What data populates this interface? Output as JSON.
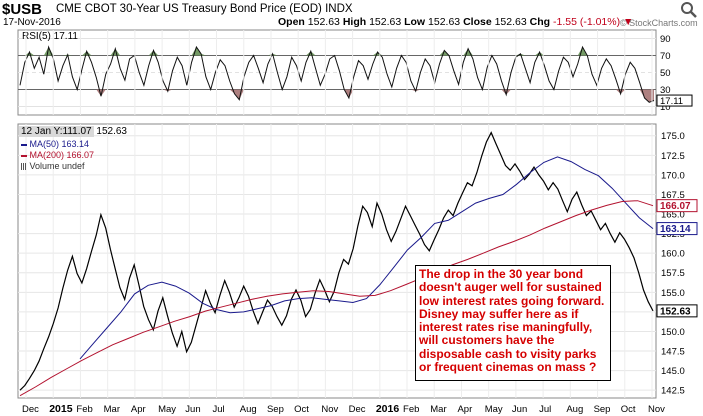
{
  "header": {
    "symbol": "$USB",
    "name": "CME CBOT 30-Year US Treasury Bond Price (EOD)",
    "exchange": "INDX",
    "date": "17-Nov-2016",
    "open_label": "Open",
    "open": "152.63",
    "high_label": "High",
    "high": "152.63",
    "low_label": "Low",
    "low": "152.63",
    "close_label": "Close",
    "close": "152.63",
    "chg_label": "Chg",
    "chg": "-1.55 (-1.01%)",
    "brand": "© StockCharts.com"
  },
  "rsi_panel": {
    "label": "RSI(5) 17.11",
    "last_value": "17.11"
  },
  "price_panel": {
    "tooltip_label": "12 Jan Y:111.07",
    "tooltip_value": "152.63",
    "legend": [
      {
        "text": "MA(50) 163.14",
        "color": "#1a1a8c"
      },
      {
        "text": "MA(200) 166.07",
        "color": "#b3122f"
      },
      {
        "text": "Volume undef",
        "color": "#333333"
      }
    ],
    "value_tags": [
      {
        "text": "166.07",
        "value": 166.07,
        "color": "#b3122f"
      },
      {
        "text": "163.14",
        "value": 163.14,
        "color": "#1a1a8c"
      },
      {
        "text": "152.63",
        "value": 152.63,
        "color": "#000000"
      }
    ]
  },
  "annotation": {
    "lines": [
      "The drop in the 30 year bond",
      "doesn't auger well for sustained",
      "low interest rates going forward.",
      "Disney may suffer here as if",
      "interest rates rise maningfully,",
      "will customers have the",
      "disposable cash to visity parks",
      "or frequent cinemas on mass ?"
    ]
  },
  "chart_data": {
    "type": "line",
    "x_ticks": [
      "Dec",
      "2015",
      "Feb",
      "Mar",
      "Apr",
      "May",
      "Jun",
      "Jul",
      "Aug",
      "Sep",
      "Oct",
      "Nov",
      "Dec",
      "2016",
      "Feb",
      "Mar",
      "Apr",
      "May",
      "Jun",
      "Jul",
      "Aug",
      "Sep",
      "Oct",
      "Nov"
    ],
    "x_range": [
      "2014-12-01",
      "2016-11-17"
    ],
    "rsi": {
      "ylim": [
        0,
        100
      ],
      "ticks": [
        10,
        30,
        50,
        70,
        90
      ],
      "overbought": 70,
      "oversold": 30,
      "values": [
        35,
        62,
        74,
        55,
        68,
        48,
        80,
        66,
        40,
        58,
        71,
        45,
        30,
        54,
        75,
        62,
        44,
        22,
        48,
        60,
        78,
        55,
        41,
        66,
        70,
        50,
        35,
        58,
        76,
        62,
        40,
        28,
        52,
        68,
        58,
        35,
        62,
        80,
        72,
        45,
        30,
        50,
        65,
        58,
        40,
        25,
        18,
        45,
        62,
        70,
        55,
        38,
        60,
        72,
        50,
        30,
        45,
        68,
        58,
        40,
        62,
        75,
        55,
        35,
        48,
        66,
        70,
        52,
        30,
        20,
        45,
        64,
        58,
        42,
        60,
        74,
        68,
        48,
        33,
        55,
        70,
        62,
        40,
        28,
        50,
        66,
        58,
        38,
        60,
        76,
        70,
        52,
        36,
        62,
        78,
        66,
        44,
        30,
        56,
        70,
        60,
        40,
        24,
        50,
        68,
        72,
        55,
        38,
        62,
        74,
        58,
        40,
        30,
        52,
        68,
        62,
        45,
        60,
        80,
        70,
        48,
        35,
        55,
        66,
        58,
        42,
        25,
        48,
        62,
        55,
        38,
        20,
        15,
        17
      ]
    },
    "price": {
      "ylim": [
        141.5,
        176.5
      ],
      "ticks": [
        142.5,
        145.0,
        147.5,
        150.0,
        152.5,
        155.0,
        157.5,
        160.0,
        162.5,
        165.0,
        167.5,
        170.0,
        172.5,
        175.0
      ],
      "series": [
        {
          "name": "$USB",
          "color": "#000000",
          "values": [
            142.5,
            143.1,
            144.0,
            145.0,
            146.2,
            147.8,
            149.3,
            151.0,
            153.0,
            155.5,
            157.8,
            159.6,
            157.4,
            156.2,
            158.0,
            160.2,
            162.3,
            164.9,
            163.2,
            160.5,
            158.0,
            155.6,
            154.1,
            156.8,
            158.5,
            155.9,
            153.2,
            151.5,
            150.2,
            152.6,
            154.3,
            152.0,
            149.8,
            148.1,
            150.0,
            147.4,
            148.6,
            150.8,
            153.0,
            155.2,
            153.6,
            152.4,
            154.6,
            156.5,
            155.0,
            153.1,
            154.3,
            155.8,
            154.5,
            152.6,
            151.0,
            152.5,
            154.0,
            153.2,
            151.9,
            150.8,
            152.0,
            154.1,
            155.3,
            154.0,
            151.9,
            152.8,
            154.9,
            156.6,
            155.3,
            153.8,
            155.1,
            157.5,
            159.2,
            158.6,
            160.6,
            163.5,
            166.0,
            165.2,
            163.4,
            166.4,
            165.0,
            163.0,
            161.5,
            162.8,
            164.4,
            166.0,
            164.8,
            163.6,
            162.4,
            161.1,
            160.3,
            161.7,
            163.0,
            164.5,
            165.5,
            164.8,
            166.4,
            167.7,
            169.0,
            168.6,
            170.3,
            172.4,
            174.2,
            175.4,
            174.0,
            172.6,
            171.2,
            170.6,
            171.4,
            170.5,
            169.4,
            170.1,
            171.0,
            170.0,
            169.2,
            168.1,
            169.0,
            168.2,
            166.7,
            165.3,
            166.9,
            167.8,
            166.2,
            164.8,
            165.4,
            164.2,
            163.0,
            163.8,
            162.5,
            161.4,
            162.6,
            161.8,
            160.7,
            159.4,
            157.5,
            155.3,
            153.8,
            152.63
          ]
        },
        {
          "name": "MA(50)",
          "color": "#1a1a8c",
          "values": [
            146.5,
            148.5,
            150.5,
            152.5,
            154.8,
            155.9,
            156.3,
            155.8,
            154.9,
            153.6,
            152.8,
            152.4,
            152.5,
            152.9,
            153.3,
            153.9,
            154.2,
            154.3,
            154.1,
            153.9,
            153.7,
            154.2,
            156.0,
            158.2,
            160.4,
            162.0,
            163.8,
            164.2,
            165.3,
            166.4,
            167.0,
            167.5,
            168.8,
            170.3,
            171.6,
            172.3,
            171.7,
            170.7,
            169.9,
            168.3,
            166.4,
            164.5,
            163.14
          ]
        },
        {
          "name": "MA(200)",
          "color": "#b3122f",
          "values": [
            141.8,
            142.9,
            144.1,
            145.2,
            146.3,
            147.3,
            148.3,
            149.1,
            149.9,
            150.6,
            151.3,
            151.9,
            152.6,
            153.1,
            153.6,
            154.1,
            154.5,
            154.8,
            155.0,
            155.2,
            155.1,
            154.8,
            154.5,
            154.6,
            155.2,
            156.0,
            156.8,
            157.6,
            158.5,
            159.2,
            160.0,
            160.8,
            161.5,
            162.3,
            163.2,
            164.0,
            164.8,
            165.5,
            166.1,
            166.6,
            166.7,
            166.07
          ]
        }
      ]
    }
  }
}
